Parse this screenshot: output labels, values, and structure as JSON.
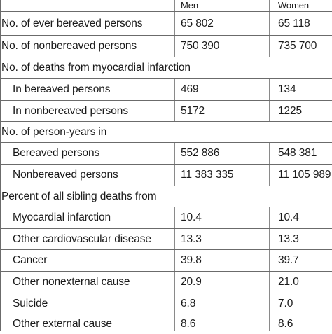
{
  "table": {
    "header": {
      "men": "Men",
      "women": "Women"
    },
    "rows": [
      {
        "label": "No. of ever bereaved persons",
        "men": "65 802",
        "women": "65 118"
      },
      {
        "label": "No. of nonbereaved persons",
        "men": "750 390",
        "women": "735 700"
      },
      {
        "label": "No. of deaths from myocardial infarction",
        "men": "",
        "women": ""
      },
      {
        "label": "In bereaved persons",
        "men": "469",
        "women": "134"
      },
      {
        "label": "In nonbereaved persons",
        "men": "5172",
        "women": "1225"
      },
      {
        "label": "No. of person-years in",
        "men": "",
        "women": ""
      },
      {
        "label": "Bereaved persons",
        "men": "552 886",
        "women": "548 381"
      },
      {
        "label": "Nonbereaved persons",
        "men": "11 383 335",
        "women": "11 105 989"
      },
      {
        "label": "Percent of all sibling deaths from",
        "men": "",
        "women": ""
      },
      {
        "label": "Myocardial infarction",
        "men": "10.4",
        "women": "10.4"
      },
      {
        "label": "Other cardiovascular disease",
        "men": "13.3",
        "women": "13.3"
      },
      {
        "label": "Cancer",
        "men": "39.8",
        "women": "39.7"
      },
      {
        "label": "Other nonexternal cause",
        "men": "20.9",
        "women": "21.0"
      },
      {
        "label": "Suicide",
        "men": "6.8",
        "women": "7.0"
      },
      {
        "label": "Other external cause",
        "men": "8.6",
        "women": "8.6"
      }
    ]
  }
}
